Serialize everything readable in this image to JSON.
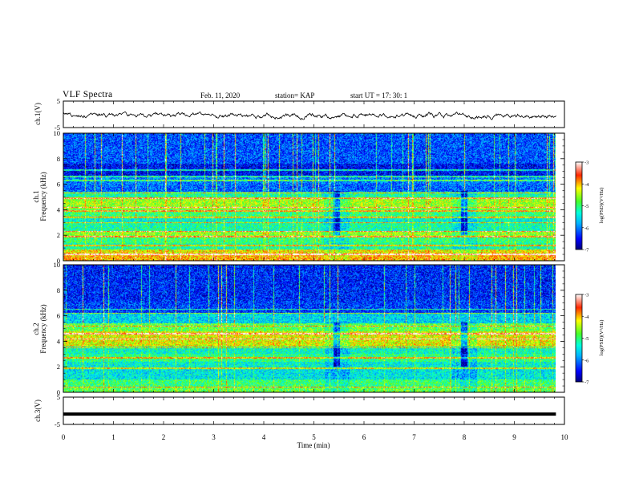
{
  "header": {
    "title": "VLF Spectra",
    "date": "Feb. 11, 2020",
    "station": "station= KAP",
    "start": "start  UT  =   17: 30: 1"
  },
  "chart_data": [
    {
      "type": "line",
      "panel": "ch1-waveform",
      "ylabel": "ch.1(V)",
      "ylim": [
        -5,
        5
      ],
      "yticks": [
        "5",
        "-5"
      ],
      "xlim": [
        0,
        10
      ],
      "series": [
        {
          "color": "#000000",
          "description_note": ""
        }
      ],
      "waveform_amplitude_range": [
        -2.5,
        1.5
      ]
    },
    {
      "type": "heatmap",
      "panel": "ch1-spectrogram",
      "ylabel": "Frequency (kHz)",
      "ylabel_prefix": "ch.1",
      "ylim": [
        0,
        10
      ],
      "yticks": [
        "0",
        "2",
        "4",
        "6",
        "8",
        "10"
      ],
      "xlim": [
        0,
        9.83
      ],
      "colorbar": {
        "label": "log(PSD)(V²/Hz)",
        "range": [
          -7,
          -3
        ],
        "ticks": [
          "-3",
          "-4",
          "-5",
          "-6",
          "-7"
        ]
      },
      "bands": [
        {
          "f": [
            0.0,
            0.5
          ],
          "level": 0.75
        },
        {
          "f": [
            0.5,
            0.9
          ],
          "level": 0.7
        },
        {
          "f": [
            0.9,
            1.4
          ],
          "level": 0.45
        },
        {
          "f": [
            1.4,
            1.9
          ],
          "level": 0.5
        },
        {
          "f": [
            1.9,
            2.3
          ],
          "level": 0.6
        },
        {
          "f": [
            2.3,
            3.0
          ],
          "level": 0.45
        },
        {
          "f": [
            3.0,
            3.4
          ],
          "level": 0.4
        },
        {
          "f": [
            3.4,
            4.0
          ],
          "level": 0.5
        },
        {
          "f": [
            4.0,
            4.9
          ],
          "level": 0.62
        },
        {
          "f": [
            4.9,
            5.4
          ],
          "level": 0.45
        },
        {
          "f": [
            5.4,
            6.0
          ],
          "level": 0.22
        },
        {
          "f": [
            6.0,
            6.6
          ],
          "level": 0.25
        },
        {
          "f": [
            6.6,
            7.6
          ],
          "level": 0.12
        },
        {
          "f": [
            7.6,
            10.0
          ],
          "level": 0.2
        }
      ],
      "lines_khz": [
        0.5,
        1.2,
        1.9,
        2.3,
        3.0,
        3.4,
        3.9,
        4.2,
        4.9,
        5.3,
        6.3,
        6.6,
        7.1
      ],
      "events_min": [
        5.45,
        8.0
      ]
    },
    {
      "type": "heatmap",
      "panel": "ch2-spectrogram",
      "ylabel": "Frequency (kHz)",
      "ylabel_prefix": "ch.2",
      "ylim": [
        0,
        10
      ],
      "yticks": [
        "0",
        "2",
        "4",
        "6",
        "8",
        "10"
      ],
      "xlim": [
        0,
        9.83
      ],
      "colorbar": {
        "label": "log(PSD)(V²/Hz)",
        "range": [
          -7,
          -3
        ],
        "ticks": [
          "-3",
          "-4",
          "-5",
          "-6",
          "-7"
        ]
      },
      "bands": [
        {
          "f": [
            0.0,
            0.4
          ],
          "level": 0.55
        },
        {
          "f": [
            0.4,
            1.0
          ],
          "level": 0.5
        },
        {
          "f": [
            1.0,
            1.8
          ],
          "level": 0.38
        },
        {
          "f": [
            1.8,
            2.4
          ],
          "level": 0.4
        },
        {
          "f": [
            2.4,
            3.0
          ],
          "level": 0.48
        },
        {
          "f": [
            3.0,
            3.6
          ],
          "level": 0.42
        },
        {
          "f": [
            3.6,
            4.8
          ],
          "level": 0.68
        },
        {
          "f": [
            4.8,
            5.4
          ],
          "level": 0.55
        },
        {
          "f": [
            5.4,
            6.2
          ],
          "level": 0.35
        },
        {
          "f": [
            6.2,
            7.2
          ],
          "level": 0.18
        },
        {
          "f": [
            7.2,
            10.0
          ],
          "level": 0.15
        }
      ],
      "lines_khz": [
        0.4,
        1.9,
        2.7,
        3.5,
        4.2,
        4.6,
        5.2,
        6.2,
        6.5
      ],
      "events_min": [
        5.45,
        8.0
      ]
    },
    {
      "type": "line",
      "panel": "ch3-waveform",
      "ylabel": "ch.3(V)",
      "ylim": [
        -5,
        5
      ],
      "yticks": [
        "5",
        "-5"
      ],
      "xlim": [
        0,
        10
      ],
      "series": [
        {
          "color": "#000000",
          "constant_value": -1.2
        }
      ]
    }
  ],
  "xaxis": {
    "label": "Time  (min)",
    "ticks": [
      "0",
      "1",
      "2",
      "3",
      "4",
      "5",
      "6",
      "7",
      "8",
      "9",
      "10"
    ]
  }
}
